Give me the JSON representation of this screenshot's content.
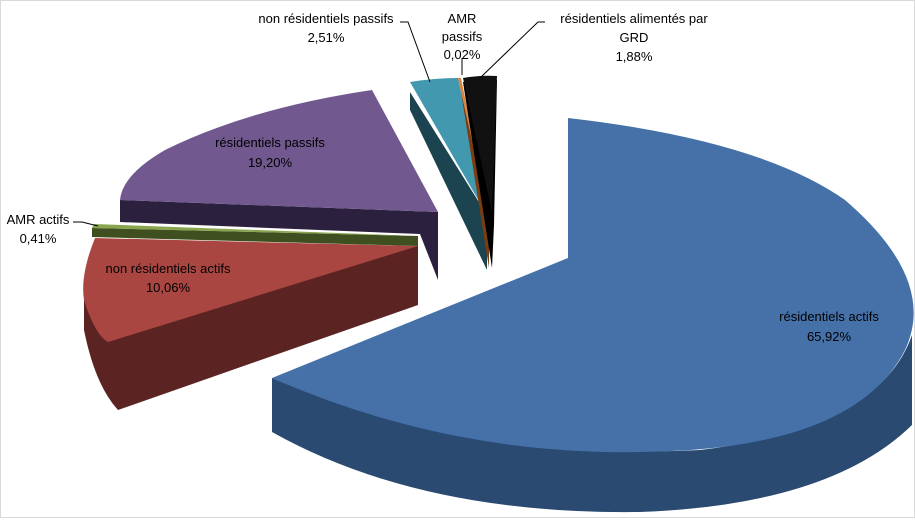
{
  "chart_data": {
    "type": "pie",
    "variant": "3d-exploded",
    "slices": [
      {
        "label": "résidentiels actifs",
        "value": 65.92,
        "display": "65,92%",
        "color": "#4571a8"
      },
      {
        "label": "non résidentiels actifs",
        "value": 10.06,
        "display": "10,06%",
        "color": "#aa4642"
      },
      {
        "label": "AMR actifs",
        "value": 0.41,
        "display": "0,41%",
        "color": "#89a54e"
      },
      {
        "label": "résidentiels passifs",
        "value": 19.2,
        "display": "19,20%",
        "color": "#71588f"
      },
      {
        "label": "non résidentiels passifs",
        "value": 2.51,
        "display": "2,51%",
        "color": "#4198af"
      },
      {
        "label": "AMR passifs",
        "value": 0.02,
        "display": "0,02%",
        "color": "#db843d"
      },
      {
        "label": "résidentiels alimentés par GRD",
        "value": 1.88,
        "display": "1,88%",
        "color": "#111111"
      }
    ],
    "legend": "none",
    "data_labels": "outside-or-inside with leader lines"
  }
}
